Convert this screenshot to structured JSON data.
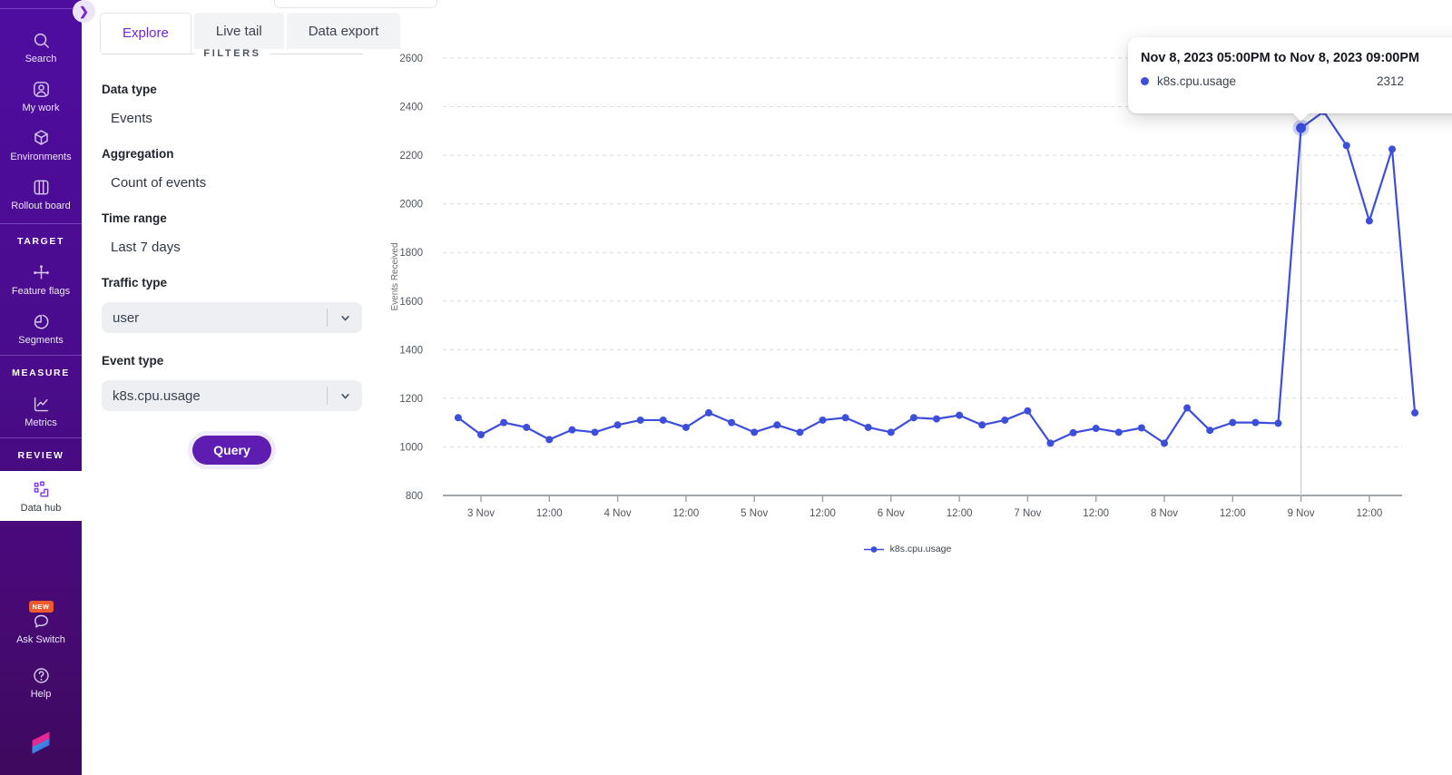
{
  "colors": {
    "sidebar_purple": "#4a0d9c",
    "accent_purple": "#6d28d9",
    "query_purple": "#5e1db0",
    "chart_blue": "#3d4edb",
    "badge_orange": "#ed5a2d",
    "tab_gray": "#f2f3f5"
  },
  "sidebar": {
    "collapse_toggle_glyph": "❯",
    "primary_items": [
      {
        "icon": "search",
        "label": "Search"
      },
      {
        "icon": "my-work",
        "label": "My work"
      },
      {
        "icon": "environments",
        "label": "Environments"
      },
      {
        "icon": "rollout-board",
        "label": "Rollout board"
      }
    ],
    "sections": [
      {
        "title": "TARGET",
        "items": [
          {
            "icon": "feature-flags",
            "label": "Feature flags"
          },
          {
            "icon": "segments",
            "label": "Segments"
          }
        ]
      },
      {
        "title": "MEASURE",
        "items": [
          {
            "icon": "metrics",
            "label": "Metrics"
          }
        ]
      },
      {
        "title": "REVIEW",
        "items": [
          {
            "icon": "data-hub",
            "label": "Data hub",
            "active": true
          }
        ]
      }
    ],
    "footer_items": [
      {
        "icon": "ask-switch",
        "label": "Ask Switch",
        "badge": "NEW"
      },
      {
        "icon": "help",
        "label": "Help"
      }
    ]
  },
  "tabs": [
    {
      "label": "Explore",
      "active": true
    },
    {
      "label": "Live tail",
      "active": false
    },
    {
      "label": "Data export",
      "active": false
    }
  ],
  "filters": {
    "heading": "FILTERS",
    "fields": [
      {
        "label": "Data type",
        "value": "Events",
        "type": "static"
      },
      {
        "label": "Aggregation",
        "value": "Count of events",
        "type": "static"
      },
      {
        "label": "Time range",
        "value": "Last 7 days",
        "type": "static"
      },
      {
        "label": "Traffic type",
        "value": "user",
        "type": "select"
      },
      {
        "label": "Event type",
        "value": "k8s.cpu.usage",
        "type": "select"
      }
    ],
    "query_label": "Query"
  },
  "tooltip": {
    "title": "Nov 8, 2023 05:00PM to Nov 8, 2023 09:00PM",
    "series": "k8s.cpu.usage",
    "value": "2312"
  },
  "chart_data": {
    "type": "line",
    "title": "",
    "xlabel": "",
    "ylabel": "Events Received",
    "ylim": [
      800,
      2600
    ],
    "y_ticks": [
      2600,
      2400,
      2200,
      2000,
      1800,
      1600,
      1400,
      1200,
      1000,
      800
    ],
    "x_tick_labels": [
      "3 Nov",
      "12:00",
      "4 Nov",
      "12:00",
      "5 Nov",
      "12:00",
      "6 Nov",
      "12:00",
      "7 Nov",
      "12:00",
      "8 Nov",
      "12:00",
      "9 Nov",
      "12:00"
    ],
    "grid": "horizontal-dashed",
    "legend_position": "bottom",
    "legend": [
      "k8s.cpu.usage"
    ],
    "series": [
      {
        "name": "k8s.cpu.usage",
        "color": "#3d4edb",
        "values": [
          1120,
          1050,
          1100,
          1080,
          1030,
          1070,
          1060,
          1090,
          1110,
          1110,
          1080,
          1140,
          1100,
          1060,
          1090,
          1060,
          1110,
          1120,
          1080,
          1060,
          1120,
          1115,
          1130,
          1090,
          1110,
          1148,
          1015,
          1058,
          1076,
          1060,
          1078,
          1015,
          1160,
          1068,
          1100,
          1100,
          1097,
          2312,
          2380,
          2240,
          1930,
          2225,
          1140
        ]
      }
    ],
    "hovered_index": 37,
    "hovered_value": 2312
  }
}
